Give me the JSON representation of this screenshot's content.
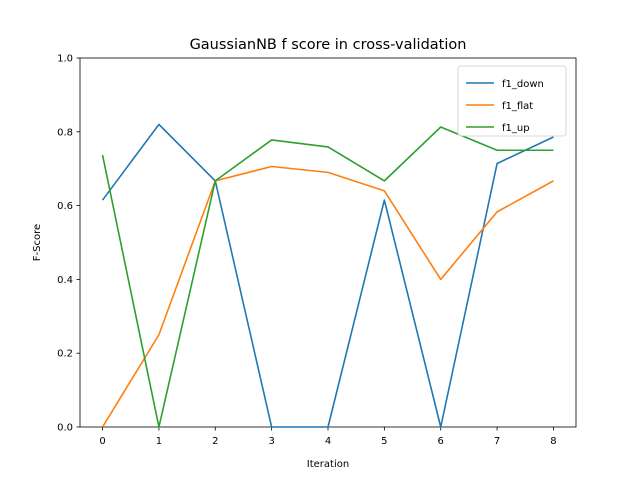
{
  "chart_data": {
    "type": "line",
    "title": "GaussianNB f score in cross-validation",
    "xlabel": "Iteration",
    "ylabel": "F-Score",
    "x": [
      0,
      1,
      2,
      3,
      4,
      5,
      6,
      7,
      8
    ],
    "xticks": [
      "0",
      "1",
      "2",
      "3",
      "4",
      "5",
      "6",
      "7",
      "8"
    ],
    "yticks": [
      "0.0",
      "0.2",
      "0.4",
      "0.6",
      "0.8",
      "1.0"
    ],
    "xlim": [
      -0.4,
      8.4
    ],
    "ylim": [
      0,
      1
    ],
    "grid": false,
    "legend_position": "top-right",
    "series": [
      {
        "name": "f1_down",
        "color": "#1f77b4",
        "values": [
          0.615,
          0.82,
          0.667,
          0.0,
          0.0,
          0.615,
          0.0,
          0.714,
          0.786
        ]
      },
      {
        "name": "f1_flat",
        "color": "#ff7f0e",
        "values": [
          0.0,
          0.25,
          0.667,
          0.706,
          0.69,
          0.64,
          0.4,
          0.583,
          0.667
        ]
      },
      {
        "name": "f1_up",
        "color": "#2ca02c",
        "values": [
          0.737,
          0.0,
          0.667,
          0.778,
          0.759,
          0.667,
          0.813,
          0.75,
          0.75
        ]
      }
    ]
  }
}
